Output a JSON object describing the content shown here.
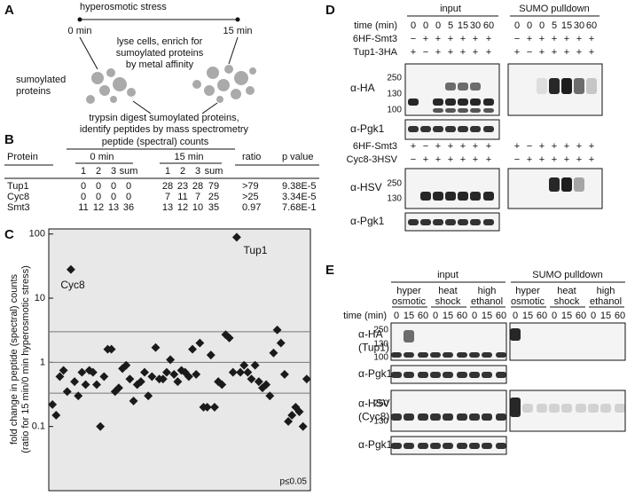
{
  "panel_a": {
    "label": "A",
    "stress": "hyperosmotic stress",
    "t0": "0 min",
    "t15": "15 min",
    "enrich_lines": [
      "lyse cells, enrich for",
      "sumoylated proteins",
      "by metal affinity"
    ],
    "sumo_lines": [
      "sumoylated",
      "proteins"
    ],
    "digest_lines": [
      "trypsin digest sumoylated proteins,",
      "identify peptides by mass spectrometry"
    ]
  },
  "panel_b": {
    "label": "B",
    "title": "peptide (spectral) counts",
    "headers": [
      "Protein",
      "0 min",
      "15 min",
      "ratio",
      "p value"
    ],
    "subheaders": [
      "1",
      "2",
      "3",
      "sum",
      "1",
      "2",
      "3",
      "sum"
    ],
    "rows": [
      [
        "Tup1",
        0,
        0,
        0,
        0,
        28,
        23,
        28,
        79,
        ">79",
        "9.38E-5"
      ],
      [
        "Cyc8",
        0,
        0,
        0,
        0,
        7,
        11,
        7,
        25,
        ">25",
        "3.34E-5"
      ],
      [
        "Smt3",
        11,
        12,
        13,
        36,
        13,
        12,
        10,
        35,
        0.97,
        "7.68E-1"
      ]
    ]
  },
  "chart_data": {
    "type": "scatter",
    "label": "C",
    "ylabel": [
      "fold change in peptide (spectral) counts",
      "(ratio for 15 min/0 min hyperosmotic stress)"
    ],
    "x": [
      1,
      2,
      3,
      4,
      5,
      6,
      7,
      8,
      9,
      10,
      11,
      12,
      13,
      14,
      15,
      16,
      17,
      18,
      19,
      20,
      21,
      22,
      23,
      24,
      25,
      26,
      27,
      28,
      29,
      30,
      31,
      32,
      33,
      34,
      35,
      36,
      37,
      38,
      39,
      40,
      41,
      42,
      43,
      44,
      45,
      46,
      47,
      48,
      49,
      50,
      51,
      52,
      53,
      54,
      55,
      56,
      57,
      58,
      59,
      60,
      61,
      62,
      63,
      64,
      65,
      66,
      67,
      68,
      69,
      70
    ],
    "y": [
      0.22,
      0.15,
      0.6,
      0.75,
      0.35,
      28,
      0.5,
      0.3,
      0.7,
      0.45,
      0.75,
      0.7,
      0.45,
      0.1,
      0.6,
      1.6,
      1.6,
      0.35,
      0.4,
      0.8,
      0.9,
      0.55,
      0.25,
      0.45,
      0.5,
      0.7,
      0.3,
      0.6,
      1.7,
      0.55,
      0.55,
      0.7,
      1.1,
      0.65,
      0.5,
      0.75,
      0.7,
      0.6,
      1.6,
      0.65,
      2.0,
      0.2,
      0.2,
      1.3,
      0.2,
      0.5,
      0.45,
      2.7,
      2.4,
      0.7,
      89,
      0.7,
      0.9,
      0.7,
      0.55,
      0.9,
      0.5,
      0.4,
      0.45,
      0.3,
      1.4,
      3.2,
      2.0,
      0.65,
      0.12,
      0.15,
      0.2,
      0.17,
      0.1,
      0.55
    ],
    "xlim": [
      0,
      71
    ],
    "ylim": [
      0.01,
      120
    ],
    "log_y": true,
    "yticks": [
      0.1,
      1,
      10,
      100
    ],
    "hlines": [
      3,
      1,
      0.33
    ],
    "color": "#1a1a1a",
    "background": "#e8e8e8",
    "annotations": [
      "Cyc8",
      "Tup1",
      "p≤0.05"
    ]
  },
  "panel_d": {
    "label": "D",
    "input": "input",
    "pulldown": "SUMO pulldown",
    "time_label": "time (min)",
    "times_input": [
      0,
      0,
      0,
      5,
      15,
      30,
      60
    ],
    "times_pulldown": [
      0,
      0,
      0,
      5,
      15,
      30,
      60
    ],
    "blocks": [
      {
        "rows": [
          {
            "name": "6HF-Smt3",
            "input": [
              "−",
              "+",
              "+",
              "+",
              "+",
              "+",
              "+"
            ],
            "pulldown": [
              "−",
              "+",
              "+",
              "+",
              "+",
              "+",
              "+"
            ]
          },
          {
            "name": "Tup1-3HA",
            "input": [
              "+",
              "−",
              "+",
              "+",
              "+",
              "+",
              "+"
            ],
            "pulldown": [
              "+",
              "−",
              "+",
              "+",
              "+",
              "+",
              "+"
            ]
          }
        ],
        "antibody": "α-HA",
        "mw": [
          250,
          130,
          100
        ],
        "loading": "α-Pgk1"
      },
      {
        "rows": [
          {
            "name": "6HF-Smt3",
            "input": [
              "+",
              "−",
              "+",
              "+",
              "+",
              "+",
              "+"
            ],
            "pulldown": [
              "+",
              "−",
              "+",
              "+",
              "+",
              "+",
              "+"
            ]
          },
          {
            "name": "Cyc8-3HSV",
            "input": [
              "−",
              "+",
              "+",
              "+",
              "+",
              "+",
              "+"
            ],
            "pulldown": [
              "−",
              "+",
              "+",
              "+",
              "+",
              "+",
              "+"
            ]
          }
        ],
        "antibody": "α-HSV",
        "mw": [
          250,
          130
        ],
        "loading": "α-Pgk1"
      }
    ]
  },
  "panel_e": {
    "label": "E",
    "input": "input",
    "pulldown": "SUMO pulldown",
    "conditions_input": [
      [
        "hyper",
        "osmotic"
      ],
      [
        "heat",
        "shock"
      ],
      [
        "high",
        "ethanol"
      ]
    ],
    "conditions_pulldown": [
      [
        "hyper",
        "osmotic"
      ],
      [
        "heat",
        "shock"
      ],
      [
        "high",
        "ethanol"
      ]
    ],
    "time_label": "time (min)",
    "times_input": [
      0,
      15,
      60,
      0,
      15,
      60,
      0,
      15,
      60
    ],
    "times_pulldown": [
      0,
      15,
      60,
      0,
      15,
      60,
      0,
      15,
      60
    ],
    "blots": [
      {
        "lines": [
          "α-HA",
          "(Tup1)"
        ],
        "mw": [
          250,
          130,
          100
        ]
      },
      {
        "lines": [
          "α-Pgk1"
        ]
      },
      {
        "lines": [
          "α-HSV",
          "(Cyc8)"
        ],
        "mw": [
          250,
          130
        ]
      },
      {
        "lines": [
          "α-Pgk1"
        ]
      }
    ]
  }
}
